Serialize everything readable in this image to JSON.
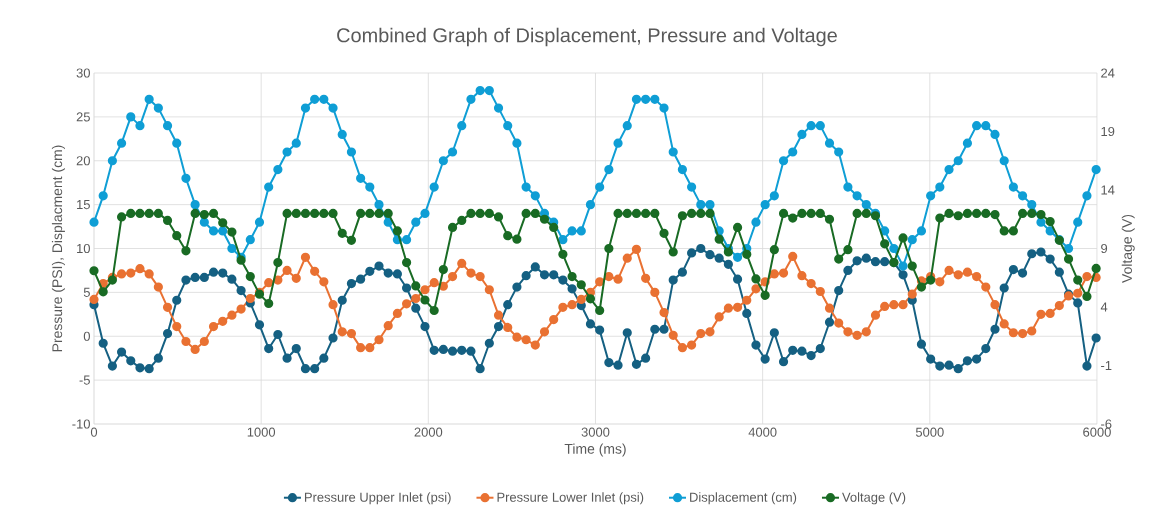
{
  "chart_data": {
    "type": "line",
    "title": "Combined Graph of Displacement, Pressure and Voltage",
    "xlabel": "Time (ms)",
    "ylabel": "Pressure (PSI), Displacment (cm)",
    "y2label": "Voltage (V)",
    "x": [
      0,
      55,
      110,
      165,
      220,
      275,
      330,
      385,
      440,
      495,
      550,
      605,
      660,
      715,
      770,
      825,
      880,
      935,
      990,
      1045,
      1100,
      1155,
      1210,
      1265,
      1320,
      1375,
      1430,
      1485,
      1540,
      1595,
      1650,
      1705,
      1760,
      1815,
      1870,
      1925,
      1980,
      2035,
      2090,
      2145,
      2200,
      2255,
      2310,
      2365,
      2420,
      2475,
      2530,
      2585,
      2640,
      2695,
      2750,
      2805,
      2860,
      2915,
      2970,
      3025,
      3080,
      3135,
      3190,
      3245,
      3300,
      3355,
      3410,
      3465,
      3520,
      3575,
      3630,
      3685,
      3740,
      3795,
      3850,
      3905,
      3960,
      4015,
      4070,
      4125,
      4180,
      4235,
      4290,
      4345,
      4400,
      4455,
      4510,
      4565,
      4620,
      4675,
      4730,
      4785,
      4840,
      4895,
      4950,
      5005,
      5060,
      5115,
      5170,
      5225,
      5280,
      5335,
      5390,
      5445,
      5500,
      5555,
      5610,
      5665,
      5720,
      5775,
      5830,
      5885,
      5940,
      5995
    ],
    "series": [
      {
        "name": "Pressure Upper Inlet (psi)",
        "color": "#156082",
        "values": [
          3.6,
          -0.8,
          -3.4,
          -1.8,
          -2.8,
          -3.6,
          -3.7,
          -2.5,
          0.3,
          4.1,
          6.4,
          6.7,
          6.7,
          7.3,
          7.2,
          6.5,
          5.2,
          3.8,
          1.3,
          -1.4,
          0.2,
          -2.5,
          -1.4,
          -3.7,
          -3.7,
          -2.5,
          -0.2,
          4.1,
          6,
          6.5,
          7.4,
          8,
          7.2,
          7.1,
          5.5,
          3.2,
          1.1,
          -1.6,
          -1.5,
          -1.7,
          -1.6,
          -1.7,
          -3.7,
          -0.8,
          1.1,
          3.6,
          5.6,
          6.9,
          7.9,
          7,
          7,
          6.4,
          5.4,
          3.5,
          1.4,
          0.7,
          -3,
          -3.3,
          0.4,
          -3.2,
          -2.5,
          0.8,
          0.8,
          6.4,
          7.3,
          9.5,
          10,
          9.3,
          8.9,
          8.2,
          6.5,
          2.6,
          -1,
          -2.6,
          0.4,
          -2.9,
          -1.6,
          -1.7,
          -2.2,
          -1.4,
          1.6,
          5.2,
          7.5,
          8.6,
          8.9,
          8.5,
          8.5,
          8.4,
          7,
          4.1,
          -0.9,
          -2.6,
          -3.4,
          -3.3,
          -3.7,
          -2.8,
          -2.6,
          -1.4,
          0.8,
          5.5,
          7.6,
          7.2,
          9.4,
          9.6,
          8.8,
          7.3,
          4.8,
          3.8,
          -3.4,
          -0.2
        ]
      },
      {
        "name": "Pressure Lower Inlet (psi)",
        "color": "#e97132",
        "values": [
          4.2,
          6,
          6.7,
          7.1,
          7.2,
          7.7,
          7.1,
          5.6,
          3.3,
          1.1,
          -0.6,
          -1.5,
          -0.6,
          1.1,
          1.7,
          2.4,
          3.1,
          4.3,
          5,
          6.1,
          6.4,
          7.5,
          6.6,
          9,
          7.4,
          6.2,
          3.6,
          0.5,
          0.3,
          -1.3,
          -1.3,
          -0.4,
          1.2,
          2.6,
          3.7,
          4.3,
          5.3,
          6.1,
          5.7,
          6.8,
          8.3,
          7.2,
          6.8,
          5.3,
          2.4,
          1,
          -0.1,
          -0.4,
          -1,
          0.5,
          1.9,
          3.3,
          3.6,
          4.2,
          5,
          6.2,
          6.8,
          6.5,
          8.9,
          9.9,
          6.6,
          5,
          2.7,
          0.1,
          -1.3,
          -1,
          0.3,
          0.5,
          2.2,
          3.2,
          3.3,
          4.1,
          5.4,
          6.2,
          7.1,
          7.2,
          9.1,
          6.9,
          6,
          5.1,
          3.2,
          1.5,
          0.5,
          0.1,
          0.5,
          2.4,
          3.4,
          3.6,
          3.6,
          4.8,
          6.3,
          6.8,
          6.2,
          7.5,
          7,
          7.3,
          6.8,
          5.6,
          3.6,
          1.4,
          0.4,
          0.3,
          0.6,
          2.5,
          2.6,
          3.5,
          4.6,
          4.9,
          6.8,
          6.7
        ]
      },
      {
        "name": "Displacement (cm)",
        "color": "#0f9ed5",
        "values": [
          13,
          16,
          20,
          22,
          25,
          24,
          27,
          26,
          24,
          22,
          18,
          15,
          13,
          12,
          12,
          10,
          9,
          11,
          13,
          17,
          19,
          21,
          22,
          26,
          27,
          27,
          26,
          23,
          21,
          18,
          17,
          15,
          13,
          11,
          11,
          13,
          14,
          17,
          20,
          21,
          24,
          27,
          28,
          28,
          26,
          24,
          22,
          17,
          16,
          14,
          13,
          11,
          12,
          12,
          15,
          17,
          19,
          22,
          24,
          27,
          27,
          27,
          26,
          21,
          19,
          17,
          15,
          15,
          12,
          10,
          9,
          10,
          13,
          15,
          16,
          20,
          21,
          23,
          24,
          24,
          22,
          21,
          17,
          16,
          15,
          14,
          12,
          10,
          8,
          11,
          12,
          16,
          17,
          19,
          20,
          22,
          24,
          24,
          23,
          20,
          17,
          16,
          15,
          13,
          12,
          11,
          10,
          13,
          16,
          19
        ]
      },
      {
        "name": "Voltage (V)",
        "color": "#196b24",
        "axis": "y2",
        "values": [
          7.1,
          5.3,
          6.3,
          11.7,
          12,
          12,
          12,
          12,
          11.4,
          10.1,
          8.8,
          12,
          11.9,
          12,
          11.2,
          10.4,
          8,
          6.6,
          5.1,
          4.3,
          7.8,
          12,
          12,
          12,
          12,
          12,
          12,
          10.3,
          9.7,
          12,
          12,
          12,
          12,
          10.5,
          7.8,
          5.8,
          4.6,
          3.7,
          7.2,
          10.8,
          11.4,
          12,
          12,
          12,
          11.7,
          10.1,
          9.8,
          12,
          12,
          11.5,
          10.8,
          8.5,
          6.6,
          5.9,
          4.7,
          3.7,
          9,
          12,
          12,
          12,
          12,
          12,
          10.3,
          8.7,
          11.8,
          12,
          12,
          12,
          9.8,
          8.7,
          10.8,
          8.5,
          6.4,
          5,
          8.9,
          12,
          11.6,
          12,
          12,
          12,
          11.5,
          8.1,
          8.9,
          12,
          12,
          11.8,
          9.4,
          7.8,
          9.9,
          7.5,
          5.7,
          6.3,
          11.6,
          12,
          11.8,
          12,
          12,
          12,
          11.9,
          10.5,
          10.5,
          12,
          12,
          11.9,
          11.3,
          9.7,
          8.1,
          6.3,
          4.9,
          7.3
        ]
      }
    ],
    "xlim": [
      0,
      6000
    ],
    "xticks": [
      0,
      1000,
      2000,
      3000,
      4000,
      5000,
      6000
    ],
    "ylim": [
      -10,
      30
    ],
    "yticks": [
      -10,
      -5,
      0,
      5,
      10,
      15,
      20,
      25,
      30
    ],
    "y2lim": [
      -6,
      24
    ],
    "y2ticks": [
      -6,
      -1,
      4,
      9,
      14,
      19,
      24
    ],
    "grid": true,
    "legend": "bottom",
    "marker": "circle",
    "line_style": "solid"
  }
}
